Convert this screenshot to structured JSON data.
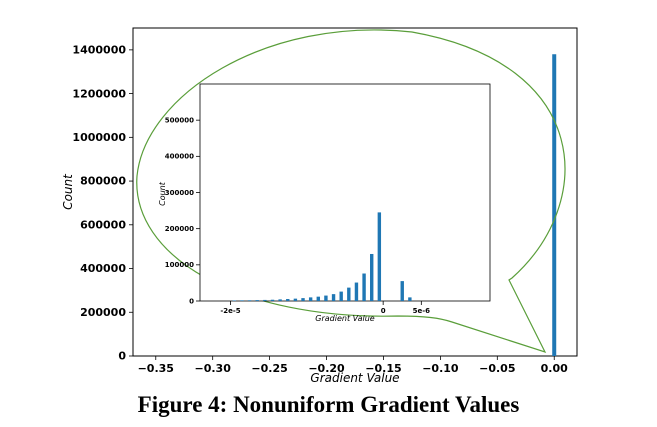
{
  "caption": "Figure 4: Nonuniform Gradient Values",
  "colors": {
    "bar": "#1f77b4",
    "callout": "#5a9e3a"
  },
  "chart_data": [
    {
      "type": "bar",
      "xlabel": "Gradient Value",
      "ylabel": "Count",
      "xlim": [
        -0.37,
        0.02
      ],
      "ylim": [
        0,
        1500000
      ],
      "xticks": [
        -0.35,
        -0.3,
        -0.25,
        -0.2,
        -0.15,
        -0.1,
        -0.05,
        0.0
      ],
      "xtick_labels": [
        "−0.35",
        "−0.30",
        "−0.25",
        "−0.20",
        "−0.15",
        "−0.10",
        "−0.05",
        "0.00"
      ],
      "yticks": [
        0,
        200000,
        400000,
        600000,
        800000,
        1000000,
        1200000,
        1400000
      ],
      "ytick_labels": [
        "0",
        "200000",
        "400000",
        "600000",
        "800000",
        "1000000",
        "1200000",
        "1400000"
      ],
      "x": [
        0.0
      ],
      "values": [
        1380000
      ]
    },
    {
      "type": "bar",
      "xlabel": "Gradient Value",
      "ylabel": "Count",
      "xlim": [
        -2.4e-05,
        1.4e-05
      ],
      "ylim": [
        0,
        600000
      ],
      "xticks": [
        -2e-05,
        0,
        5e-06
      ],
      "xtick_labels": [
        "-2e-5",
        "0",
        "5e-6"
      ],
      "yticks": [
        0,
        100000,
        200000,
        300000,
        400000,
        500000
      ],
      "ytick_labels": [
        "0",
        "100000",
        "200000",
        "300000",
        "400000",
        "500000"
      ],
      "x": [
        -1.95e-05,
        -1.85e-05,
        -1.75e-05,
        -1.65e-05,
        -1.55e-05,
        -1.45e-05,
        -1.35e-05,
        -1.25e-05,
        -1.15e-05,
        -1.05e-05,
        -9.5e-06,
        -8.5e-06,
        -7.5e-06,
        -6.5e-06,
        -5.5e-06,
        -4.5e-06,
        -3.5e-06,
        -2.5e-06,
        -1.5e-06,
        -5e-07,
        2.5e-06,
        3.5e-06
      ],
      "values": [
        1500,
        1800,
        2000,
        2500,
        3000,
        3500,
        4500,
        5500,
        6500,
        8000,
        10000,
        12000,
        15000,
        19000,
        26000,
        37000,
        51000,
        76000,
        130000,
        245000,
        55000,
        10000
      ]
    }
  ]
}
